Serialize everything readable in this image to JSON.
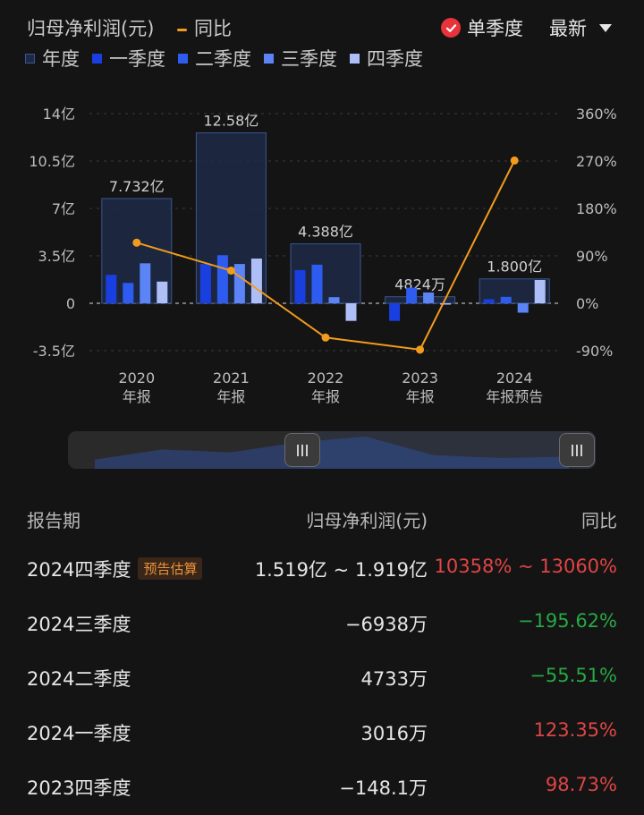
{
  "header": {
    "title": "归母净利润(元)",
    "yoy_legend": "同比",
    "single_quarter_label": "单季度",
    "latest_label": "最新"
  },
  "legend": [
    "年度",
    "一季度",
    "二季度",
    "三季度",
    "四季度"
  ],
  "colors": {
    "annual_fill": "#1d2a47",
    "annual_stroke": "#3a5590",
    "q1": "#1a3fe0",
    "q2": "#2f5cf0",
    "q3": "#5b84f7",
    "q4": "#aebff7",
    "yoy_line": "#f39c1b",
    "up": "#e04545",
    "down": "#27a844"
  },
  "chart_data": {
    "type": "bar",
    "categories": [
      "2020\n年报",
      "2021\n年报",
      "2022\n年报",
      "2023\n年报",
      "2024\n年报预告"
    ],
    "category_labels": [
      [
        "2020",
        "年报"
      ],
      [
        "2021",
        "年报"
      ],
      [
        "2022",
        "年报"
      ],
      [
        "2023",
        "年报"
      ],
      [
        "2024",
        "年报预告"
      ]
    ],
    "annual_labels": [
      "7.732亿",
      "12.58亿",
      "4.388亿",
      "4824万",
      "1.800亿"
    ],
    "series": [
      {
        "name": "年度",
        "values": [
          7.732,
          12.58,
          4.388,
          0.4824,
          1.8
        ]
      },
      {
        "name": "一季度",
        "values": [
          2.1,
          2.9,
          2.45,
          -1.3,
          0.3016
        ]
      },
      {
        "name": "二季度",
        "values": [
          1.5,
          3.55,
          2.85,
          1.15,
          0.4733
        ]
      },
      {
        "name": "三季度",
        "values": [
          2.95,
          2.9,
          0.45,
          0.8,
          -0.6938
        ]
      },
      {
        "name": "四季度",
        "values": [
          1.6,
          3.3,
          -1.3,
          -0.0148,
          1.719
        ]
      },
      {
        "name": "同比",
        "axis": "right",
        "values": [
          115,
          62,
          -65,
          -88,
          271
        ]
      }
    ],
    "left_axis": {
      "ylim": [
        -3.5,
        14
      ],
      "ticks": [
        14,
        10.5,
        7,
        3.5,
        0,
        -3.5
      ],
      "tick_labels": [
        "14亿",
        "10.5亿",
        "7亿",
        "3.5亿",
        "0",
        "-3.5亿"
      ]
    },
    "right_axis": {
      "ylim": [
        -90,
        360
      ],
      "ticks": [
        360,
        270,
        180,
        90,
        0,
        -90
      ],
      "tick_labels": [
        "360%",
        "270%",
        "180%",
        "90%",
        "0%",
        "-90%"
      ]
    },
    "grid": true
  },
  "navigator": {
    "overview_values": [
      0.2,
      0.55,
      0.45,
      0.8,
      1.0,
      0.35,
      0.25,
      0.3
    ],
    "range_start": 0.45,
    "range_end": 1.0
  },
  "table": {
    "headers": {
      "period": "报告期",
      "profit": "归母净利润(元)",
      "yoy": "同比"
    },
    "rows": [
      {
        "period": "2024四季度",
        "tag": "预告估算",
        "profit": "1.519亿 ~ 1.919亿",
        "yoy": "10358% ~ 13060%",
        "dir": "up"
      },
      {
        "period": "2024三季度",
        "tag": "",
        "profit": "−6938万",
        "yoy": "−195.62%",
        "dir": "down"
      },
      {
        "period": "2024二季度",
        "tag": "",
        "profit": "4733万",
        "yoy": "−55.51%",
        "dir": "down"
      },
      {
        "period": "2024一季度",
        "tag": "",
        "profit": "3016万",
        "yoy": "123.35%",
        "dir": "up"
      },
      {
        "period": "2023四季度",
        "tag": "",
        "profit": "−148.1万",
        "yoy": "98.73%",
        "dir": "up"
      }
    ]
  }
}
